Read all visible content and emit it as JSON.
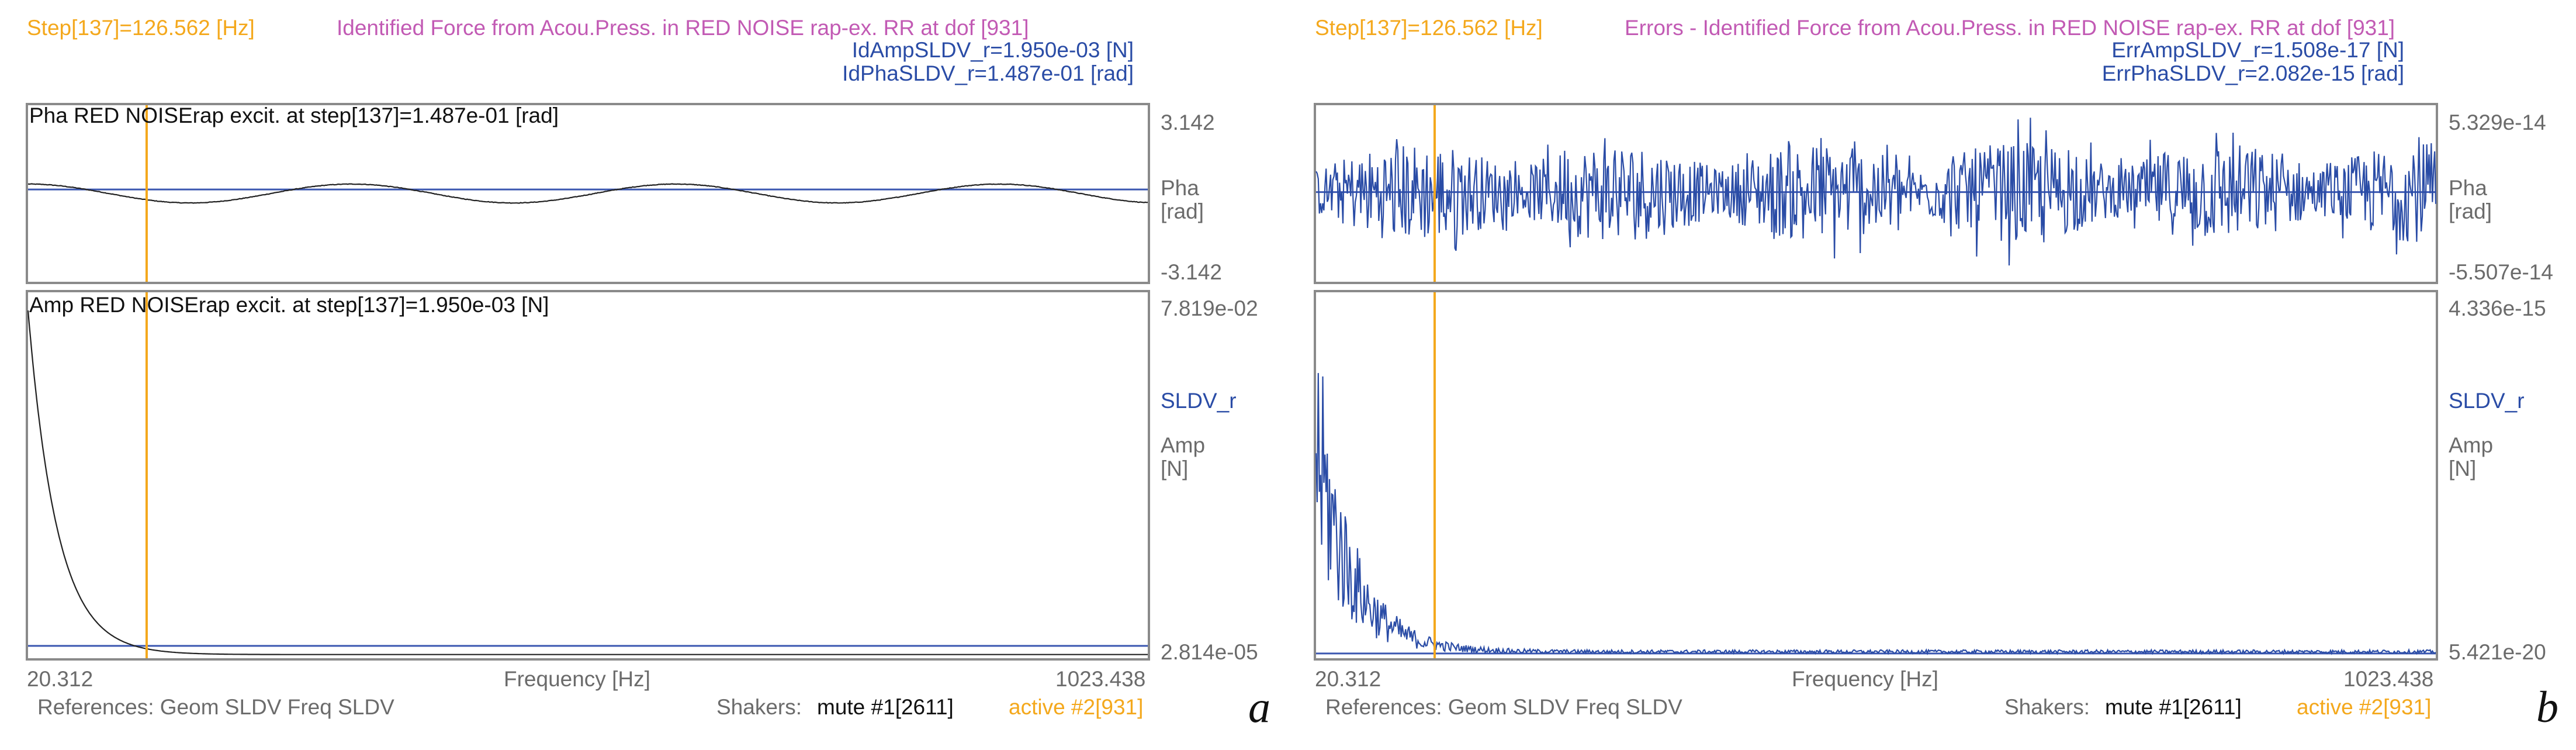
{
  "panels": [
    {
      "letter": "a",
      "step_label": "Step[137]=126.562 [Hz]",
      "title": "Identified Force from Acou.Press. in RED NOISE rap-ex. RR at dof [931]",
      "info1": "IdAmpSLDV_r=1.950e-03 [N]",
      "info2": "IdPhaSLDV_r=1.487e-01 [rad]",
      "pha_plot_label": "Pha RED NOISErap excit. at step[137]=1.487e-01 [rad]",
      "amp_plot_label": "Amp RED NOISErap excit. at step[137]=1.950e-03 [N]",
      "pha_top": "3.142",
      "pha_bottom": "-3.142",
      "pha_axis_name": "Pha",
      "pha_axis_unit": "[rad]",
      "amp_top": "7.819e-02",
      "amp_bottom": "2.814e-05",
      "series_name": "SLDV_r",
      "amp_axis_name": "Amp",
      "amp_axis_unit": "[N]",
      "x_min_label": "20.312",
      "x_label": "Frequency [Hz]",
      "x_max_label": "1023.438",
      "references": "References: Geom SLDV Freq SLDV",
      "shakers_label": "Shakers:",
      "mute_label": "mute #1[2611]",
      "active_label": "active #2[931]"
    },
    {
      "letter": "b",
      "step_label": "Step[137]=126.562 [Hz]",
      "title": "Errors - Identified Force from Acou.Press. in RED NOISE rap-ex. RR at dof [931]",
      "info1": "ErrAmpSLDV_r=1.508e-17 [N]",
      "info2": "ErrPhaSLDV_r=2.082e-15 [rad]",
      "pha_plot_label": "",
      "amp_plot_label": "",
      "pha_top": "5.329e-14",
      "pha_bottom": "-5.507e-14",
      "pha_axis_name": "Pha",
      "pha_axis_unit": "[rad]",
      "amp_top": "4.336e-15",
      "amp_bottom": "5.421e-20",
      "series_name": "SLDV_r",
      "amp_axis_name": "Amp",
      "amp_axis_unit": "[N]",
      "x_min_label": "20.312",
      "x_label": "Frequency [Hz]",
      "x_max_label": "1023.438",
      "references": "References: Geom SLDV Freq SLDV",
      "shakers_label": "Shakers:",
      "mute_label": "mute #1[2611]",
      "active_label": "active #2[931]"
    }
  ],
  "colors": {
    "orange": "#f4a81c",
    "magenta": "#c25ab4",
    "blue": "#2a4ca6",
    "trace_black": "#222222",
    "frame": "#8a8a8a"
  },
  "chart_data": [
    {
      "panel": "a",
      "type": "line",
      "subplot": "phase",
      "x_range": [
        20.312,
        1023.438
      ],
      "ylim": [
        -3.142,
        3.142
      ],
      "marker_x": 126.562,
      "reference_line_y": 0.1487,
      "trace": {
        "form": "sinusoid",
        "amplitude": 0.35,
        "period_hz": 290,
        "phase_peak_x": 20.312,
        "color": "#222222"
      }
    },
    {
      "panel": "a",
      "type": "line",
      "subplot": "amplitude",
      "x_range": [
        20.312,
        1023.438
      ],
      "ylim": [
        2.814e-05,
        0.07819
      ],
      "marker_x": 126.562,
      "reference_line_y": 0.00195,
      "trace": {
        "form": "decay",
        "start_value": 0.075,
        "decay_hz": 26,
        "floor": 6e-05,
        "color": "#222222"
      }
    },
    {
      "panel": "b",
      "type": "line",
      "subplot": "phase",
      "x_range": [
        20.312,
        1023.438
      ],
      "ylim": [
        -5.507e-14,
        5.329e-14
      ],
      "marker_x": 126.562,
      "reference_line_y": 0,
      "trace": {
        "form": "noise",
        "amplitude": 3.2e-14,
        "samples": 1000,
        "color": "#2a4ca6"
      }
    },
    {
      "panel": "b",
      "type": "line",
      "subplot": "amplitude",
      "x_range": [
        20.312,
        1023.438
      ],
      "ylim": [
        5.421e-20,
        4.336e-15
      ],
      "marker_x": 126.562,
      "reference_line_y": 1.5e-17,
      "trace": {
        "form": "noisy-decay",
        "start_value": 2.8e-15,
        "decay_hz": 32,
        "floor": 4e-17,
        "samples": 1000,
        "color": "#2a4ca6"
      }
    }
  ]
}
